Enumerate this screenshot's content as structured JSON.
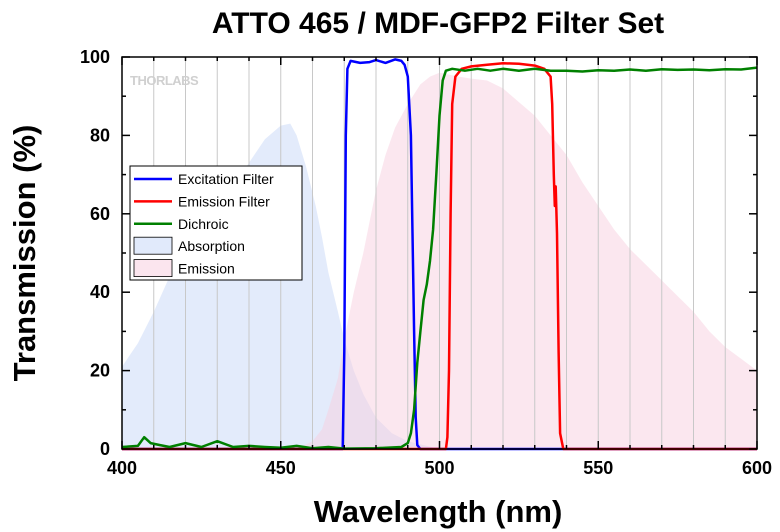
{
  "chart_data": {
    "type": "line",
    "title": "ATTO 465 / MDF-GFP2 Filter Set",
    "xlabel": "Wavelength (nm)",
    "ylabel": "Transmission (%)",
    "xlim": [
      400,
      600
    ],
    "ylim": [
      0,
      100
    ],
    "xticks": [
      400,
      450,
      500,
      550,
      600
    ],
    "yticks": [
      0,
      20,
      40,
      60,
      80,
      100
    ],
    "grid": "vertical",
    "legend_position": "center-left",
    "logo_text": "THORLABS",
    "series": [
      {
        "name": "Excitation Filter",
        "kind": "line",
        "color": "#0000ff",
        "points": [
          [
            400,
            0
          ],
          [
            465,
            0
          ],
          [
            469.5,
            0
          ],
          [
            470,
            25
          ],
          [
            470.5,
            80
          ],
          [
            471,
            97
          ],
          [
            472,
            99
          ],
          [
            475,
            98.5
          ],
          [
            478,
            98.7
          ],
          [
            480,
            99.2
          ],
          [
            483,
            98.5
          ],
          [
            486,
            99.4
          ],
          [
            488,
            99
          ],
          [
            489,
            98
          ],
          [
            490,
            95
          ],
          [
            491,
            80
          ],
          [
            491.5,
            55
          ],
          [
            492,
            30
          ],
          [
            492.5,
            8
          ],
          [
            493,
            1
          ],
          [
            494,
            0
          ],
          [
            600,
            0
          ]
        ]
      },
      {
        "name": "Emission Filter",
        "kind": "line",
        "color": "#ff0000",
        "points": [
          [
            400,
            0
          ],
          [
            502,
            0
          ],
          [
            502.5,
            3
          ],
          [
            503,
            20
          ],
          [
            503.5,
            60
          ],
          [
            504,
            88
          ],
          [
            505,
            95
          ],
          [
            507,
            97
          ],
          [
            510,
            97.6
          ],
          [
            515,
            98
          ],
          [
            520,
            98.4
          ],
          [
            525,
            98.3
          ],
          [
            530,
            97.8
          ],
          [
            533,
            97
          ],
          [
            535,
            95
          ],
          [
            535.5,
            88
          ],
          [
            536,
            70
          ],
          [
            536.3,
            62
          ],
          [
            536.6,
            67
          ],
          [
            537,
            55
          ],
          [
            537.5,
            25
          ],
          [
            538,
            4
          ],
          [
            539,
            0
          ],
          [
            600,
            0
          ]
        ]
      },
      {
        "name": "Dichroic",
        "kind": "line",
        "color": "#008000",
        "points": [
          [
            400,
            0.5
          ],
          [
            405,
            0.8
          ],
          [
            407,
            3
          ],
          [
            409,
            1.5
          ],
          [
            412,
            1
          ],
          [
            415,
            0.5
          ],
          [
            420,
            1.5
          ],
          [
            425,
            0.5
          ],
          [
            430,
            2
          ],
          [
            435,
            0.5
          ],
          [
            440,
            0.8
          ],
          [
            445,
            0.5
          ],
          [
            450,
            0.3
          ],
          [
            455,
            0.8
          ],
          [
            460,
            0.2
          ],
          [
            465,
            0.5
          ],
          [
            470,
            0.1
          ],
          [
            480,
            0.2
          ],
          [
            488,
            0.5
          ],
          [
            490,
            1.5
          ],
          [
            491,
            4
          ],
          [
            492,
            10
          ],
          [
            493,
            22
          ],
          [
            494,
            30
          ],
          [
            495,
            38
          ],
          [
            496,
            42
          ],
          [
            497,
            48
          ],
          [
            498,
            56
          ],
          [
            499,
            70
          ],
          [
            500,
            85
          ],
          [
            501,
            94
          ],
          [
            502,
            96.5
          ],
          [
            504,
            97
          ],
          [
            508,
            96.5
          ],
          [
            512,
            97
          ],
          [
            516,
            96.5
          ],
          [
            520,
            97
          ],
          [
            525,
            96.5
          ],
          [
            530,
            97
          ],
          [
            535,
            96.5
          ],
          [
            540,
            96.5
          ],
          [
            545,
            96.3
          ],
          [
            550,
            96.6
          ],
          [
            555,
            96.5
          ],
          [
            560,
            96.8
          ],
          [
            565,
            96.5
          ],
          [
            570,
            96.9
          ],
          [
            575,
            96.7
          ],
          [
            580,
            96.8
          ],
          [
            585,
            96.6
          ],
          [
            590,
            96.9
          ],
          [
            595,
            96.8
          ],
          [
            600,
            97.3
          ]
        ]
      },
      {
        "name": "Absorption",
        "kind": "area",
        "color": "#c8d8f8",
        "points": [
          [
            400,
            21
          ],
          [
            405,
            27
          ],
          [
            410,
            35
          ],
          [
            415,
            44
          ],
          [
            420,
            51
          ],
          [
            425,
            57
          ],
          [
            430,
            62
          ],
          [
            435,
            67
          ],
          [
            440,
            73
          ],
          [
            445,
            79
          ],
          [
            450,
            82.5
          ],
          [
            453,
            83
          ],
          [
            455,
            80
          ],
          [
            458,
            72
          ],
          [
            461,
            62
          ],
          [
            463,
            54
          ],
          [
            465,
            45
          ],
          [
            468,
            35
          ],
          [
            470,
            28
          ],
          [
            473,
            20
          ],
          [
            476,
            14
          ],
          [
            480,
            8
          ],
          [
            485,
            4
          ],
          [
            490,
            2
          ],
          [
            495,
            1
          ],
          [
            500,
            0
          ],
          [
            600,
            0
          ]
        ]
      },
      {
        "name": "Emission",
        "kind": "area",
        "color": "#f8d0e0",
        "points": [
          [
            400,
            0
          ],
          [
            455,
            0
          ],
          [
            460,
            2
          ],
          [
            463,
            5
          ],
          [
            465,
            10
          ],
          [
            468,
            18
          ],
          [
            470,
            28
          ],
          [
            473,
            40
          ],
          [
            476,
            50
          ],
          [
            478,
            58
          ],
          [
            480,
            66
          ],
          [
            483,
            75
          ],
          [
            486,
            82
          ],
          [
            490,
            88
          ],
          [
            494,
            93
          ],
          [
            497,
            95
          ],
          [
            500,
            96
          ],
          [
            503,
            95.5
          ],
          [
            506,
            95
          ],
          [
            510,
            94.5
          ],
          [
            515,
            94
          ],
          [
            520,
            92
          ],
          [
            525,
            88.5
          ],
          [
            530,
            85
          ],
          [
            535,
            80
          ],
          [
            540,
            75
          ],
          [
            545,
            68
          ],
          [
            550,
            62
          ],
          [
            555,
            56
          ],
          [
            560,
            51
          ],
          [
            565,
            47
          ],
          [
            570,
            43
          ],
          [
            575,
            39
          ],
          [
            580,
            35
          ],
          [
            585,
            30
          ],
          [
            590,
            26
          ],
          [
            595,
            23
          ],
          [
            600,
            20
          ]
        ]
      }
    ]
  }
}
